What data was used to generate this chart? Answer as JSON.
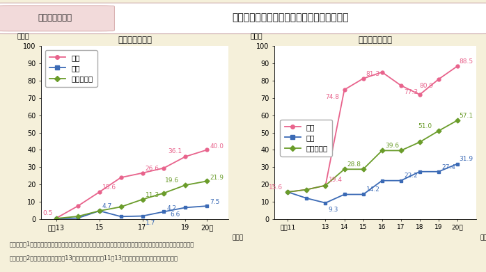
{
  "title_box_label": "第１－特－５図",
  "title_main": "市区町村における条例及び計画策定率の推移",
  "left_title": "【条例策定率】",
  "right_title": "【計画策定率】",
  "ylabel": "（％）",
  "xlabel_suffix": "年度）",
  "yticks": [
    0,
    10,
    20,
    30,
    40,
    50,
    60,
    70,
    80,
    90,
    100
  ],
  "left_xticks": [
    13,
    15,
    17,
    19,
    20
  ],
  "left_xticklabels": [
    "平成13",
    "15",
    "17",
    "19",
    "20（"
  ],
  "left_xlim": [
    12.3,
    21.0
  ],
  "right_xticks": [
    11,
    13,
    14,
    15,
    16,
    17,
    18,
    19,
    20
  ],
  "right_xticklabels": [
    "平成11",
    "13",
    "14",
    "15",
    "16",
    "17",
    "18",
    "19",
    "20（"
  ],
  "right_xlim": [
    10.3,
    21.0
  ],
  "left_shiku_x": [
    13,
    14,
    15,
    16,
    17,
    18,
    19,
    20
  ],
  "left_shiku_y": [
    0.5,
    7.5,
    15.6,
    24.0,
    26.6,
    29.5,
    36.1,
    40.0
  ],
  "left_choson_x": [
    13,
    14,
    15,
    16,
    17,
    18,
    19,
    20
  ],
  "left_choson_y": [
    0.2,
    0.5,
    4.7,
    1.4,
    1.7,
    4.2,
    6.6,
    7.5
  ],
  "left_shikucho_x": [
    13,
    14,
    15,
    16,
    17,
    18,
    19,
    20
  ],
  "left_shikucho_y": [
    0.3,
    1.5,
    4.7,
    7.0,
    11.3,
    15.0,
    19.6,
    21.9
  ],
  "right_shiku_x": [
    11,
    12,
    13,
    14,
    15,
    16,
    17,
    18,
    19,
    20
  ],
  "right_shiku_y": [
    15.6,
    17.0,
    19.4,
    74.8,
    81.3,
    85.0,
    77.3,
    72.0,
    80.9,
    88.5
  ],
  "right_choson_x": [
    11,
    12,
    13,
    14,
    15,
    16,
    17,
    18,
    19,
    20
  ],
  "right_choson_y": [
    15.6,
    12.0,
    9.3,
    14.2,
    14.2,
    22.2,
    22.2,
    27.4,
    27.4,
    31.9
  ],
  "right_shikucho_x": [
    11,
    12,
    13,
    14,
    15,
    16,
    17,
    18,
    19,
    20
  ],
  "right_shikucho_y": [
    15.6,
    17.0,
    19.4,
    28.8,
    28.8,
    39.6,
    39.6,
    44.5,
    51.0,
    57.1
  ],
  "color_shiku": "#e8638c",
  "color_choson": "#3b6ab5",
  "color_shikucho": "#6a9c2a",
  "label_shiku": "市区",
  "label_choson": "町村",
  "label_shikucho": "市区町村計",
  "bg_color": "#f5f0da",
  "plot_bg": "#ffffff",
  "footer1": "（備考）　1．内閣府「地方公共団体における男女共同参画社会の形成又は女性に関する施策の推進状況」より作成。",
  "footer2": "　　　　　2．条例については平成13年，計画については11〜13年の市区・町村別のデータはない。"
}
